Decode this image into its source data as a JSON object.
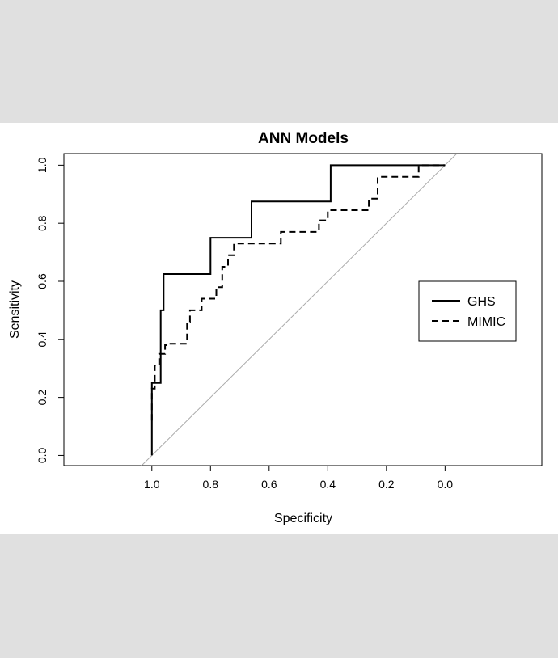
{
  "chart_data": {
    "type": "line",
    "title": "ANN Models",
    "xlabel": "Specificity",
    "ylabel": "Sensitivity",
    "x_reversed": true,
    "xlim": [
      1.3,
      -0.33
    ],
    "ylim": [
      -0.035,
      1.04
    ],
    "x_ticks": [
      1.0,
      0.8,
      0.6,
      0.4,
      0.2,
      0.0
    ],
    "x_tick_labels": [
      "1.0",
      "0.8",
      "0.6",
      "0.4",
      "0.2",
      "0.0"
    ],
    "y_ticks": [
      0.0,
      0.2,
      0.4,
      0.6,
      0.8,
      1.0
    ],
    "y_tick_labels": [
      "0.0",
      "0.2",
      "0.4",
      "0.6",
      "0.8",
      "1.0"
    ],
    "grid": false,
    "legend_position": "right",
    "reference_line": {
      "from": [
        1.0,
        0.0
      ],
      "to": [
        0.0,
        1.0
      ],
      "color": "#aaaaaa"
    },
    "series": [
      {
        "name": "GHS",
        "style": "solid",
        "color": "#000000",
        "x": [
          1.0,
          1.0,
          0.97,
          0.97,
          0.96,
          0.96,
          0.8,
          0.8,
          0.66,
          0.66,
          0.39,
          0.39,
          0.0
        ],
        "y": [
          0.0,
          0.25,
          0.25,
          0.5,
          0.5,
          0.625,
          0.625,
          0.75,
          0.75,
          0.875,
          0.875,
          1.0,
          1.0
        ]
      },
      {
        "name": "MIMIC",
        "style": "dashed",
        "color": "#000000",
        "x": [
          1.0,
          1.0,
          0.99,
          0.99,
          0.975,
          0.975,
          0.955,
          0.955,
          0.94,
          0.94,
          0.88,
          0.88,
          0.87,
          0.87,
          0.86,
          0.86,
          0.83,
          0.83,
          0.78,
          0.78,
          0.76,
          0.76,
          0.74,
          0.74,
          0.72,
          0.72,
          0.7,
          0.7,
          0.56,
          0.56,
          0.43,
          0.43,
          0.4,
          0.4,
          0.26,
          0.26,
          0.23,
          0.23,
          0.09,
          0.09,
          0.0
        ],
        "y": [
          0.12,
          0.23,
          0.23,
          0.31,
          0.31,
          0.35,
          0.35,
          0.38,
          0.38,
          0.385,
          0.385,
          0.46,
          0.46,
          0.5,
          0.5,
          0.5,
          0.5,
          0.54,
          0.54,
          0.58,
          0.58,
          0.65,
          0.65,
          0.69,
          0.69,
          0.73,
          0.73,
          0.73,
          0.73,
          0.77,
          0.77,
          0.81,
          0.81,
          0.845,
          0.845,
          0.885,
          0.885,
          0.96,
          0.96,
          1.0,
          1.0
        ]
      }
    ]
  }
}
